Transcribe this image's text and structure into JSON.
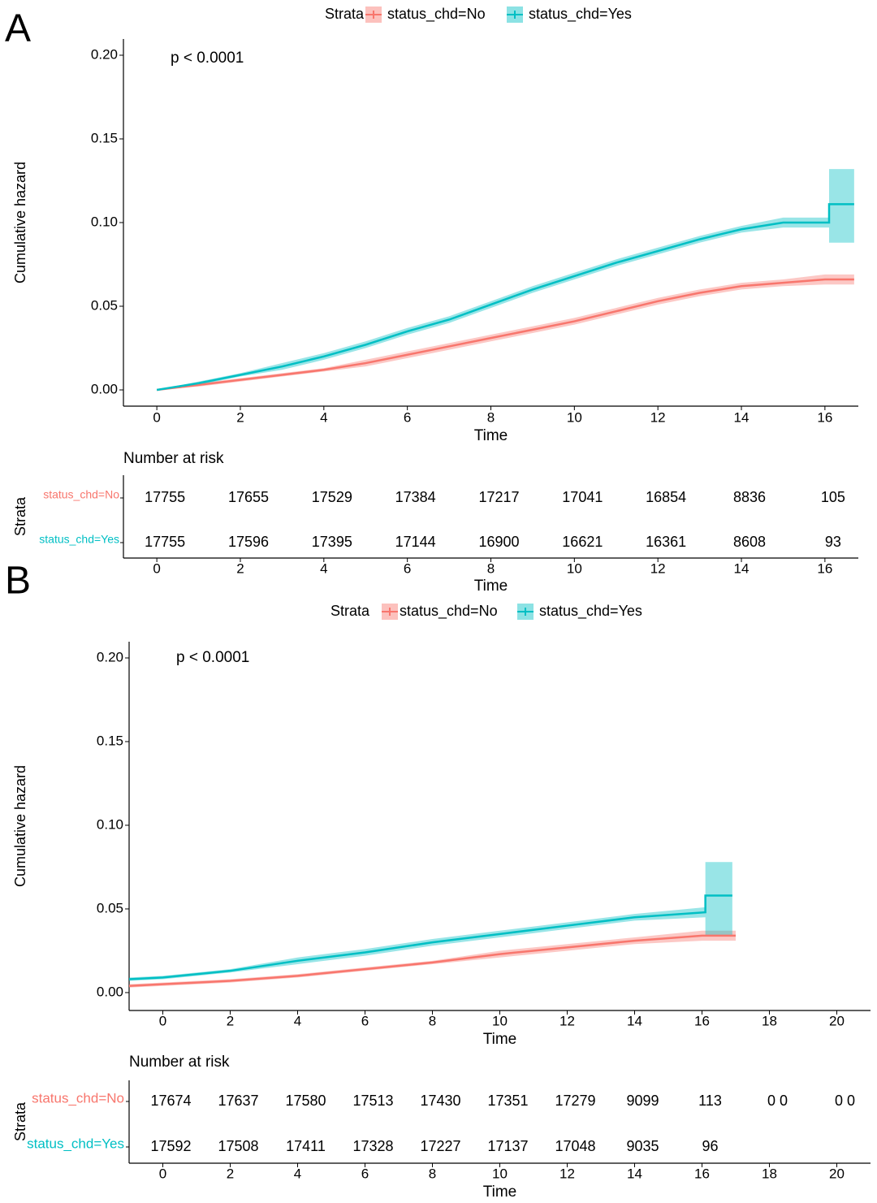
{
  "chart_data": [
    {
      "type": "line",
      "panel_label": "A",
      "legend_title": "Strata",
      "annotation": "p < 0.0001",
      "xlabel": "Time",
      "ylabel": "Cumulative hazard",
      "xlim": [
        -0.8,
        16.8
      ],
      "ylim": [
        -0.0097,
        0.2097
      ],
      "xticks": [
        0,
        2,
        4,
        6,
        8,
        10,
        12,
        14,
        16
      ],
      "yticks": [
        {
          "value": 0,
          "label": "0.00"
        },
        0.05,
        {
          "value": 0.1,
          "label": "0.10"
        },
        0.15,
        {
          "value": 0.2,
          "label": "0.20"
        }
      ],
      "series": [
        {
          "name": "status_chd=No",
          "color": "#F8766D",
          "x": [
            0,
            1,
            2,
            3,
            4,
            5,
            6,
            7,
            8,
            9,
            10,
            11,
            12,
            13,
            14,
            15,
            16,
            16.7
          ],
          "values": [
            0,
            0.003,
            0.006,
            0.009,
            0.012,
            0.016,
            0.021,
            0.026,
            0.031,
            0.036,
            0.041,
            0.047,
            0.053,
            0.058,
            0.062,
            0.064,
            0.066,
            0.066
          ],
          "lower": [
            0,
            0.002,
            0.005,
            0.008,
            0.011,
            0.014,
            0.019,
            0.024,
            0.029,
            0.034,
            0.039,
            0.045,
            0.051,
            0.056,
            0.06,
            0.062,
            0.063,
            0.063
          ],
          "upper": [
            0,
            0.004,
            0.007,
            0.01,
            0.013,
            0.018,
            0.023,
            0.028,
            0.033,
            0.038,
            0.043,
            0.049,
            0.055,
            0.06,
            0.064,
            0.066,
            0.069,
            0.069
          ]
        },
        {
          "name": "status_chd=Yes",
          "color": "#00BFC4",
          "x": [
            0,
            1,
            2,
            3,
            4,
            5,
            6,
            7,
            8,
            9,
            10,
            11,
            12,
            13,
            14,
            15,
            16.1,
            16.1,
            16.7
          ],
          "values": [
            0,
            0.004,
            0.009,
            0.014,
            0.02,
            0.027,
            0.035,
            0.042,
            0.051,
            0.06,
            0.068,
            0.076,
            0.083,
            0.09,
            0.096,
            0.1,
            0.1,
            0.111,
            0.111
          ],
          "lower": [
            0,
            0.003,
            0.008,
            0.012,
            0.018,
            0.025,
            0.033,
            0.04,
            0.049,
            0.058,
            0.066,
            0.074,
            0.081,
            0.088,
            0.094,
            0.097,
            0.097,
            0.088,
            0.088
          ],
          "upper": [
            0,
            0.005,
            0.01,
            0.016,
            0.022,
            0.029,
            0.037,
            0.044,
            0.053,
            0.062,
            0.07,
            0.078,
            0.085,
            0.092,
            0.098,
            0.103,
            0.103,
            0.132,
            0.132
          ]
        }
      ],
      "risk_table": {
        "title": "Number at risk",
        "ylabel": "Strata",
        "xlabel": "Time",
        "rows": [
          {
            "name": "status_chd=No",
            "values": [
              17755,
              17655,
              17529,
              17384,
              17217,
              17041,
              16854,
              8836,
              105
            ]
          },
          {
            "name": "status_chd=Yes",
            "values": [
              17755,
              17596,
              17395,
              17144,
              16900,
              16621,
              16361,
              8608,
              93
            ]
          }
        ]
      }
    },
    {
      "type": "line",
      "panel_label": "B",
      "legend_title": "Strata",
      "annotation": "p < 0.0001",
      "xlabel": "Time",
      "ylabel": "Cumulative hazard",
      "xlim": [
        -1,
        21
      ],
      "ylim": [
        -0.0107,
        0.2097
      ],
      "xticks": [
        0,
        2,
        4,
        6,
        8,
        10,
        12,
        14,
        16,
        18,
        20
      ],
      "yticks": [
        {
          "value": 0,
          "label": "0.00"
        },
        0.05,
        {
          "value": 0.1,
          "label": "0.10"
        },
        0.15,
        {
          "value": 0.2,
          "label": "0.20"
        }
      ],
      "series": [
        {
          "name": "status_chd=No",
          "color": "#F8766D",
          "x": [
            -1,
            0,
            2,
            4,
            6,
            8,
            10,
            12,
            14,
            16,
            17
          ],
          "values": [
            0.004,
            0.005,
            0.007,
            0.01,
            0.014,
            0.018,
            0.023,
            0.027,
            0.031,
            0.034,
            0.034
          ],
          "lower": [
            0.003,
            0.004,
            0.006,
            0.009,
            0.013,
            0.017,
            0.021,
            0.025,
            0.029,
            0.031,
            0.031
          ],
          "upper": [
            0.005,
            0.006,
            0.008,
            0.011,
            0.015,
            0.019,
            0.025,
            0.029,
            0.033,
            0.037,
            0.037
          ]
        },
        {
          "name": "status_chd=Yes",
          "color": "#00BFC4",
          "x": [
            -1,
            0,
            2,
            4,
            6,
            8,
            10,
            12,
            14,
            16.1,
            16.1,
            16.9
          ],
          "values": [
            0.008,
            0.009,
            0.013,
            0.019,
            0.024,
            0.03,
            0.035,
            0.04,
            0.045,
            0.048,
            0.058,
            0.058
          ],
          "lower": [
            0.007,
            0.008,
            0.012,
            0.017,
            0.022,
            0.028,
            0.033,
            0.038,
            0.043,
            0.045,
            0.034,
            0.034
          ],
          "upper": [
            0.009,
            0.01,
            0.014,
            0.021,
            0.026,
            0.032,
            0.037,
            0.042,
            0.047,
            0.051,
            0.078,
            0.078
          ]
        }
      ],
      "risk_table": {
        "title": "Number at risk",
        "ylabel": "Strata",
        "xlabel": "Time",
        "rows": [
          {
            "name": "status_chd=No",
            "values": [
              17674,
              17637,
              17580,
              17513,
              17430,
              17351,
              17279,
              9099,
              113,
              "0 0",
              "0 0"
            ]
          },
          {
            "name": "status_chd=Yes",
            "values": [
              17592,
              17508,
              17411,
              17328,
              17227,
              17137,
              17048,
              9035,
              96,
              null,
              null
            ]
          }
        ]
      }
    }
  ]
}
